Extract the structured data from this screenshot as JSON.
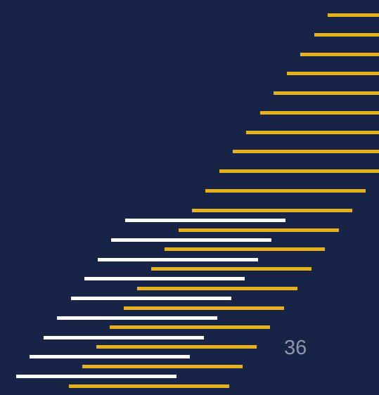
{
  "slide": {
    "page_number": "36"
  },
  "colors": {
    "background": "#172447",
    "gold_stripe": "#e6b21c",
    "white_stripe": "#ffffff",
    "page_number_text": "#8f96a8"
  }
}
